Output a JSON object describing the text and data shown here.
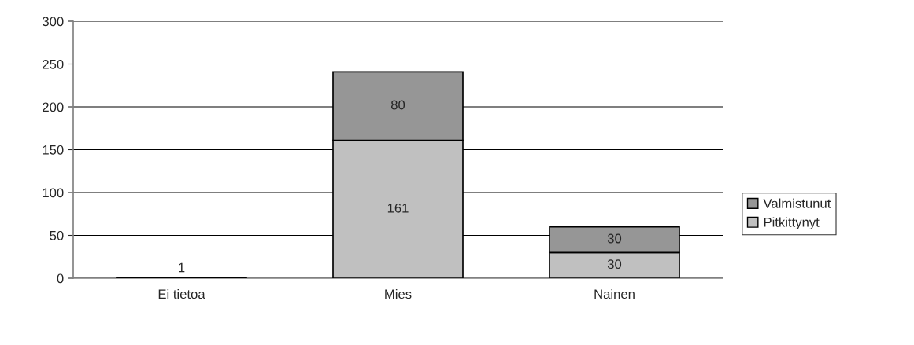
{
  "chart_data": {
    "type": "bar",
    "stacked": true,
    "categories": [
      "Ei tietoa",
      "Mies",
      "Nainen"
    ],
    "series": [
      {
        "name": "Pitkittynyt",
        "color": "#c0c0c0",
        "values": [
          1,
          161,
          30
        ]
      },
      {
        "name": "Valmistunut",
        "color": "#969696",
        "values": [
          null,
          80,
          30
        ]
      }
    ],
    "ylim": [
      0,
      300
    ],
    "yticks": [
      0,
      50,
      100,
      150,
      200,
      250,
      300
    ],
    "grid": "y",
    "legend": "right",
    "data_labels": true
  }
}
